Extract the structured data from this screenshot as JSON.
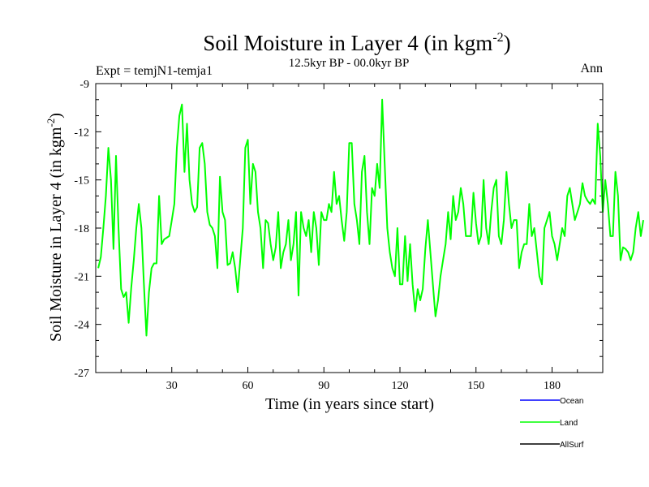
{
  "chart_data": {
    "type": "line",
    "title_main": "Soil Moisture in Layer 4 (in kgm",
    "title_sup": "-2",
    "title_close": ")",
    "subtitle": "12.5kyr BP - 00.0kyr BP",
    "expt_label": "Expt = temjN1-temja1",
    "season_label": "Ann",
    "xlabel": "Time (in years since start)",
    "ylabel_main": "Soil Moisture in Layer 4 (in kgm",
    "ylabel_sup": "-2",
    "ylabel_close": ")",
    "xlim": [
      0,
      200
    ],
    "ylim": [
      -27,
      -9
    ],
    "x_ticks": [
      30,
      60,
      90,
      120,
      150,
      180
    ],
    "y_ticks": [
      -27,
      -24,
      -21,
      -18,
      -15,
      -12,
      -9
    ],
    "x_tick_labels": [
      "30",
      "60",
      "90",
      "120",
      "150",
      "180"
    ],
    "y_tick_labels": [
      "-27",
      "-24",
      "-21",
      "-18",
      "-15",
      "-12",
      "-9"
    ],
    "legend_position": "bottom-right",
    "series": [
      {
        "name": "Ocean",
        "color": "#0000ff",
        "values": []
      },
      {
        "name": "Land",
        "color": "#00ff00",
        "x_start": 1,
        "values": [
          -20.5,
          -19.8,
          -18.0,
          -16.0,
          -13.0,
          -15.0,
          -19.3,
          -13.5,
          -18.0,
          -21.8,
          -22.3,
          -22.0,
          -23.9,
          -21.7,
          -20.0,
          -18.0,
          -16.5,
          -18.0,
          -21.5,
          -24.7,
          -22.0,
          -20.5,
          -20.2,
          -20.2,
          -16.0,
          -19.0,
          -18.7,
          -18.6,
          -18.5,
          -17.5,
          -16.5,
          -13.0,
          -11.0,
          -10.3,
          -14.5,
          -11.5,
          -15.0,
          -16.5,
          -17.0,
          -16.7,
          -13.0,
          -12.7,
          -14.0,
          -17.0,
          -17.8,
          -18.0,
          -18.5,
          -20.5,
          -14.8,
          -17.0,
          -17.5,
          -20.3,
          -20.2,
          -19.5,
          -20.5,
          -22.0,
          -20.0,
          -18.0,
          -13.0,
          -12.5,
          -16.5,
          -14.0,
          -14.5,
          -17.0,
          -18.0,
          -20.5,
          -17.5,
          -17.7,
          -19.0,
          -20.0,
          -19.2,
          -17.0,
          -20.5,
          -19.5,
          -19.0,
          -17.5,
          -20.0,
          -19.0,
          -17.0,
          -22.2,
          -17.0,
          -18.0,
          -18.5,
          -17.5,
          -19.5,
          -17.0,
          -18.0,
          -20.3,
          -17.0,
          -17.5,
          -17.5,
          -16.5,
          -17.0,
          -14.5,
          -16.5,
          -16.0,
          -17.5,
          -18.8,
          -17.0,
          -12.7,
          -12.7,
          -16.5,
          -17.5,
          -19.0,
          -14.5,
          -13.5,
          -17.0,
          -19.0,
          -15.5,
          -16.0,
          -14.0,
          -15.5,
          -10.0,
          -14.0,
          -18.0,
          -19.5,
          -20.5,
          -21.0,
          -18.0,
          -21.5,
          -21.5,
          -18.5,
          -21.3,
          -19.0,
          -21.5,
          -23.2,
          -21.8,
          -22.5,
          -21.8,
          -19.3,
          -17.5,
          -19.5,
          -21.5,
          -23.5,
          -22.5,
          -21.0,
          -20.0,
          -19.0,
          -17.0,
          -18.7,
          -16.0,
          -17.5,
          -17.0,
          -15.5,
          -16.5,
          -18.5,
          -18.5,
          -18.5,
          -15.8,
          -17.7,
          -19.0,
          -18.5,
          -15.0,
          -18.0,
          -19.0,
          -17.0,
          -15.5,
          -15.0,
          -18.5,
          -19.0,
          -17.5,
          -14.5,
          -16.5,
          -18.0,
          -17.5,
          -17.5,
          -20.5,
          -19.5,
          -19.0,
          -19.0,
          -16.5,
          -18.5,
          -18.0,
          -19.5,
          -21.0,
          -21.5,
          -18.0,
          -17.5,
          -17.0,
          -18.5,
          -19.0,
          -20.0,
          -19.0,
          -18.0,
          -18.5,
          -16.0,
          -15.5,
          -16.5,
          -17.5,
          -17.0,
          -16.5,
          -15.2,
          -16.0,
          -16.3,
          -16.5,
          -16.2,
          -16.5,
          -11.5,
          -13.5,
          -17.0,
          -15.0,
          -16.5,
          -18.5,
          -18.5,
          -14.5,
          -16.0,
          -20.0,
          -19.2,
          -19.3,
          -19.5,
          -20.0,
          -19.5,
          -18.0,
          -17.0,
          -18.5,
          -17.5
        ]
      },
      {
        "name": "AllSurf",
        "color": "#000000",
        "values": []
      }
    ]
  }
}
